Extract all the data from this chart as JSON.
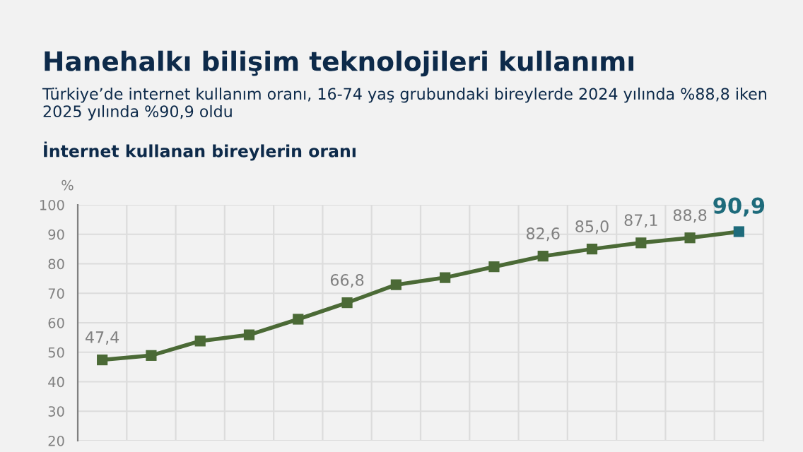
{
  "chart_data": {
    "type": "line",
    "title": "Hanehalkı bilişim teknolojileri kullanımı",
    "subtitle": "Türkiye’de internet kullanım oranı, 16-74 yaş grubundaki bireylerde 2024 yılında %88,8 iken 2025 yılında %90,9 oldu",
    "annotations": [
      "İnternet kullanan bireylerin oranı"
    ],
    "ylabel": "%",
    "categories": [
      null,
      null,
      null,
      null,
      null,
      null,
      null,
      null,
      null,
      null,
      null,
      null,
      null,
      null
    ],
    "series": [
      {
        "color": "#4b6a36",
        "values": [
          47.4,
          48.9,
          53.8,
          55.9,
          61.2,
          66.8,
          72.9,
          75.3,
          79.0,
          82.6,
          85.0,
          87.1,
          88.8,
          90.9
        ],
        "colors": [
          "#4b6a36",
          "#4b6a36",
          "#4b6a36",
          "#4b6a36",
          "#4b6a36",
          "#4b6a36",
          "#4b6a36",
          "#4b6a36",
          "#4b6a36",
          "#4b6a36",
          "#4b6a36",
          "#4b6a36",
          "#4b6a36",
          "#1e6b7b"
        ],
        "value_labels": [
          "47,4",
          null,
          null,
          null,
          null,
          "66,8",
          null,
          null,
          null,
          "82,6",
          "85,0",
          "87,1",
          "88,8",
          "90,9"
        ]
      }
    ],
    "ylim": [
      20,
      100
    ],
    "yticks": [
      20,
      30,
      40,
      50,
      60,
      70,
      80,
      90,
      100
    ],
    "grid": true,
    "marker": "square",
    "line_style": "solid"
  }
}
